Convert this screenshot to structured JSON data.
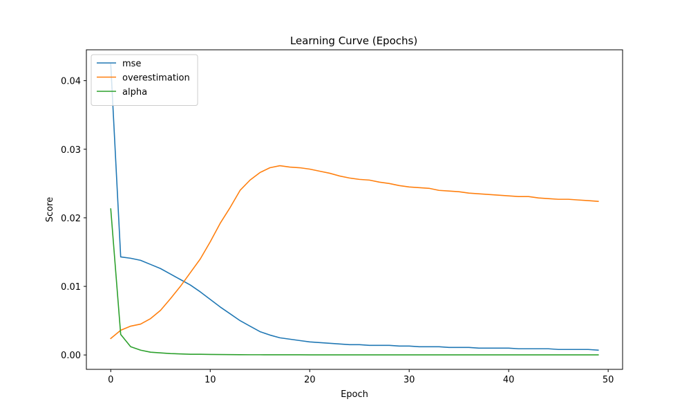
{
  "chart_data": {
    "type": "line",
    "title": "Learning Curve (Epochs)",
    "xlabel": "Epoch",
    "ylabel": "Score",
    "xlim": [
      -2.45,
      51.45
    ],
    "ylim": [
      -0.0021,
      0.0445
    ],
    "xticks": [
      0,
      10,
      20,
      30,
      40,
      50
    ],
    "xtick_labels": [
      "0",
      "10",
      "20",
      "30",
      "40",
      "50"
    ],
    "yticks": [
      0.0,
      0.01,
      0.02,
      0.03,
      0.04
    ],
    "ytick_labels": [
      "0.00",
      "0.01",
      "0.02",
      "0.03",
      "0.04"
    ],
    "grid": false,
    "legend_position": "top-left",
    "x": [
      0,
      1,
      2,
      3,
      4,
      5,
      6,
      7,
      8,
      9,
      10,
      11,
      12,
      13,
      14,
      15,
      16,
      17,
      18,
      19,
      20,
      21,
      22,
      23,
      24,
      25,
      26,
      27,
      28,
      29,
      30,
      31,
      32,
      33,
      34,
      35,
      36,
      37,
      38,
      39,
      40,
      41,
      42,
      43,
      44,
      45,
      46,
      47,
      48,
      49
    ],
    "series": [
      {
        "name": "mse",
        "color": "#1f77b4",
        "values": [
          0.0424,
          0.0143,
          0.0141,
          0.0138,
          0.0132,
          0.0126,
          0.0118,
          0.011,
          0.0102,
          0.0092,
          0.0081,
          0.007,
          0.006,
          0.005,
          0.0042,
          0.0034,
          0.0029,
          0.0025,
          0.0023,
          0.0021,
          0.0019,
          0.0018,
          0.0017,
          0.0016,
          0.0015,
          0.0015,
          0.0014,
          0.0014,
          0.0014,
          0.0013,
          0.0013,
          0.0012,
          0.0012,
          0.0012,
          0.0011,
          0.0011,
          0.0011,
          0.001,
          0.001,
          0.001,
          0.001,
          0.0009,
          0.0009,
          0.0009,
          0.0009,
          0.0008,
          0.0008,
          0.0008,
          0.0008,
          0.0007
        ]
      },
      {
        "name": "overestimation",
        "color": "#ff7f0e",
        "values": [
          0.0024,
          0.0036,
          0.0042,
          0.0045,
          0.0053,
          0.0065,
          0.0082,
          0.01,
          0.012,
          0.014,
          0.0165,
          0.0192,
          0.0215,
          0.024,
          0.0255,
          0.0266,
          0.0273,
          0.0276,
          0.0274,
          0.0273,
          0.0271,
          0.0268,
          0.0265,
          0.0261,
          0.0258,
          0.0256,
          0.0255,
          0.0252,
          0.025,
          0.0247,
          0.0245,
          0.0244,
          0.0243,
          0.024,
          0.0239,
          0.0238,
          0.0236,
          0.0235,
          0.0234,
          0.0233,
          0.0232,
          0.0231,
          0.0231,
          0.0229,
          0.0228,
          0.0227,
          0.0227,
          0.0226,
          0.0225,
          0.0224
        ]
      },
      {
        "name": "alpha",
        "color": "#2ca02c",
        "values": [
          0.0213,
          0.003,
          0.0012,
          0.0007,
          0.0004,
          0.0003,
          0.0002,
          0.00015,
          0.0001,
          0.0001,
          8e-05,
          6e-05,
          5e-05,
          4e-05,
          3e-05,
          3e-05,
          2e-05,
          2e-05,
          2e-05,
          2e-05,
          1e-05,
          1e-05,
          1e-05,
          1e-05,
          1e-05,
          1e-05,
          1e-05,
          1e-05,
          1e-05,
          1e-05,
          1e-05,
          1e-05,
          1e-05,
          1e-05,
          1e-05,
          1e-05,
          1e-05,
          1e-05,
          1e-05,
          1e-05,
          1e-05,
          1e-05,
          1e-05,
          1e-05,
          1e-05,
          1e-05,
          1e-05,
          1e-05,
          1e-05,
          1e-05
        ]
      }
    ]
  }
}
